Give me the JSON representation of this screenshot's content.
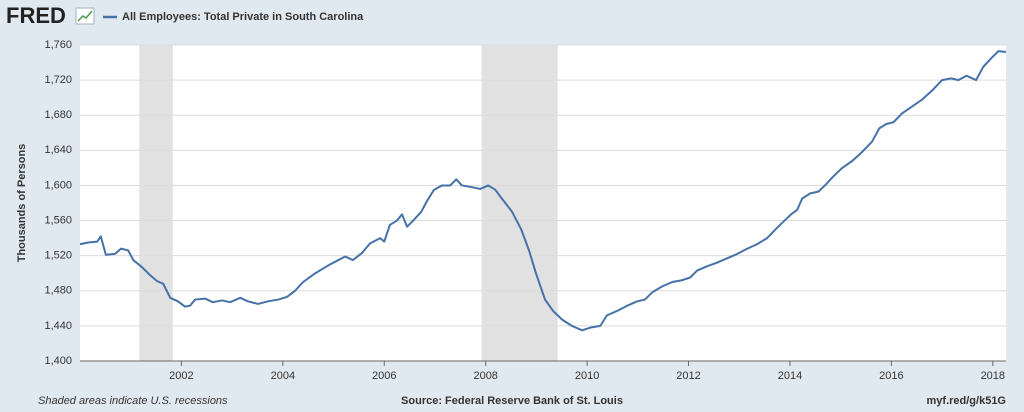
{
  "logo": "FRED",
  "chart_data": {
    "type": "line",
    "ylabel": "Thousands of Persons",
    "x": [
      2000.0,
      2000.16,
      2000.34,
      2000.41,
      2000.51,
      2000.69,
      2000.81,
      2000.95,
      2001.05,
      2001.22,
      2001.38,
      2001.52,
      2001.64,
      2001.78,
      2001.93,
      2002.07,
      2002.17,
      2002.27,
      2002.47,
      2002.62,
      2002.8,
      2002.96,
      2003.16,
      2003.31,
      2003.51,
      2003.71,
      2003.91,
      2004.08,
      2004.24,
      2004.4,
      2004.64,
      2004.93,
      2005.23,
      2005.38,
      2005.56,
      2005.72,
      2005.92,
      2006.0,
      2006.11,
      2006.25,
      2006.35,
      2006.45,
      2006.57,
      2006.73,
      2006.84,
      2006.98,
      2007.14,
      2007.3,
      2007.42,
      2007.53,
      2007.73,
      2007.89,
      2008.05,
      2008.19,
      2008.32,
      2008.52,
      2008.7,
      2008.86,
      2008.99,
      2009.17,
      2009.33,
      2009.51,
      2009.7,
      2009.9,
      2010.06,
      2010.26,
      2010.39,
      2010.59,
      2010.79,
      2010.99,
      2011.14,
      2011.28,
      2011.48,
      2011.68,
      2011.87,
      2012.03,
      2012.17,
      2012.37,
      2012.56,
      2012.76,
      2012.96,
      2013.16,
      2013.35,
      2013.55,
      2013.75,
      2013.93,
      2014.04,
      2014.14,
      2014.24,
      2014.4,
      2014.56,
      2014.69,
      2014.85,
      2015.03,
      2015.23,
      2015.42,
      2015.62,
      2015.76,
      2015.9,
      2016.04,
      2016.21,
      2016.41,
      2016.61,
      2016.8,
      2017.0,
      2017.18,
      2017.32,
      2017.48,
      2017.67,
      2017.81,
      2017.97,
      2018.11,
      2018.26
    ],
    "series": [
      {
        "name": "All Employees: Total Private in South Carolina",
        "color": "#4572a7",
        "values": [
          1533,
          1535,
          1536,
          1542,
          1521,
          1522,
          1528,
          1526,
          1515,
          1507,
          1498,
          1491,
          1488,
          1472,
          1468,
          1462,
          1463,
          1470,
          1471,
          1467,
          1469,
          1467,
          1472,
          1468,
          1465,
          1468,
          1470,
          1473,
          1480,
          1490,
          1500,
          1510,
          1519,
          1515,
          1523,
          1534,
          1540,
          1536,
          1555,
          1560,
          1567,
          1553,
          1560,
          1570,
          1582,
          1595,
          1600,
          1600,
          1607,
          1600,
          1598,
          1596,
          1600,
          1595,
          1585,
          1570,
          1550,
          1525,
          1500,
          1470,
          1457,
          1447,
          1440,
          1435,
          1438,
          1440,
          1452,
          1457,
          1463,
          1468,
          1470,
          1478,
          1485,
          1490,
          1492,
          1495,
          1503,
          1508,
          1512,
          1517,
          1522,
          1528,
          1533,
          1540,
          1552,
          1562,
          1568,
          1572,
          1585,
          1591,
          1593,
          1600,
          1610,
          1620,
          1628,
          1638,
          1650,
          1665,
          1670,
          1672,
          1682,
          1690,
          1698,
          1708,
          1720,
          1722,
          1720,
          1725,
          1720,
          1735,
          1745,
          1753,
          1752
        ]
      }
    ],
    "recessions": [
      [
        2001.17,
        2001.83
      ],
      [
        2007.92,
        2009.42
      ]
    ],
    "xlim": [
      2000,
      2018.26
    ],
    "xticks": [
      2002,
      2004,
      2006,
      2008,
      2010,
      2012,
      2014,
      2016,
      2018
    ],
    "ylim": [
      1400,
      1760
    ],
    "yticks": [
      {
        "value": 1400,
        "label": "1,400"
      },
      {
        "value": 1440,
        "label": "1,440"
      },
      {
        "value": 1480,
        "label": "1,480"
      },
      {
        "value": 1520,
        "label": "1,520"
      },
      {
        "value": 1560,
        "label": "1,560"
      },
      {
        "value": 1600,
        "label": "1,600"
      },
      {
        "value": 1640,
        "label": "1,640"
      },
      {
        "value": 1680,
        "label": "1,680"
      },
      {
        "value": 1720,
        "label": "1,720"
      },
      {
        "value": 1760,
        "label": "1,760"
      }
    ],
    "grid": true,
    "note": "Shaded areas indicate U.S. recessions",
    "source": "Source: Federal Reserve Bank of St. Louis",
    "link": "myf.red/g/k51G"
  }
}
